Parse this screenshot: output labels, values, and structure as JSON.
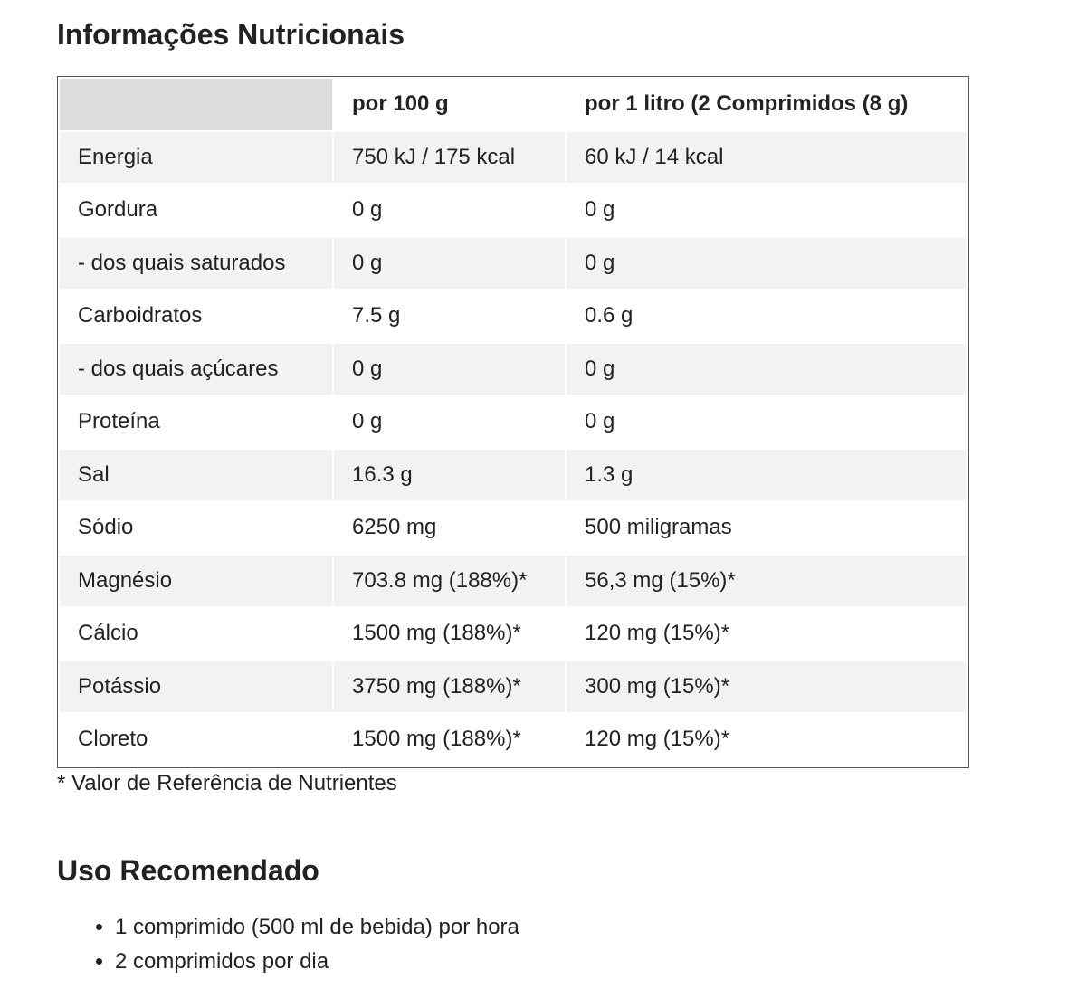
{
  "title": "Informações Nutricionais",
  "table": {
    "columns": [
      "por 100 g",
      "por 1 litro (2 Comprimidos (8 g)"
    ],
    "rows": [
      [
        "Energia",
        "750 kJ / 175 kcal",
        "60 kJ / 14 kcal"
      ],
      [
        "Gordura",
        "0 g",
        "0 g"
      ],
      [
        "- dos quais saturados",
        "0 g",
        "0 g"
      ],
      [
        "Carboidratos",
        "7.5 g",
        "0.6 g"
      ],
      [
        "- dos quais açúcares",
        "0 g",
        "0 g"
      ],
      [
        "Proteína",
        "0 g",
        "0 g"
      ],
      [
        "Sal",
        "16.3 g",
        "1.3 g"
      ],
      [
        "Sódio",
        "6250 mg",
        "500 miligramas"
      ],
      [
        "Magnésio",
        "703.8 mg (188%)*",
        "56,3 mg (15%)*"
      ],
      [
        "Cálcio",
        "1500 mg (188%)*",
        "120 mg (15%)*"
      ],
      [
        "Potássio",
        "3750 mg (188%)*",
        "300 mg (15%)*"
      ],
      [
        "Cloreto",
        "1500 mg (188%)*",
        "120 mg (15%)*"
      ]
    ]
  },
  "footnote": "* Valor de Referência de Nutrientes",
  "usage": {
    "title": "Uso Recomendado",
    "items": [
      "1 comprimido (500 ml de bebida) por hora",
      "2 comprimidos por dia"
    ]
  }
}
